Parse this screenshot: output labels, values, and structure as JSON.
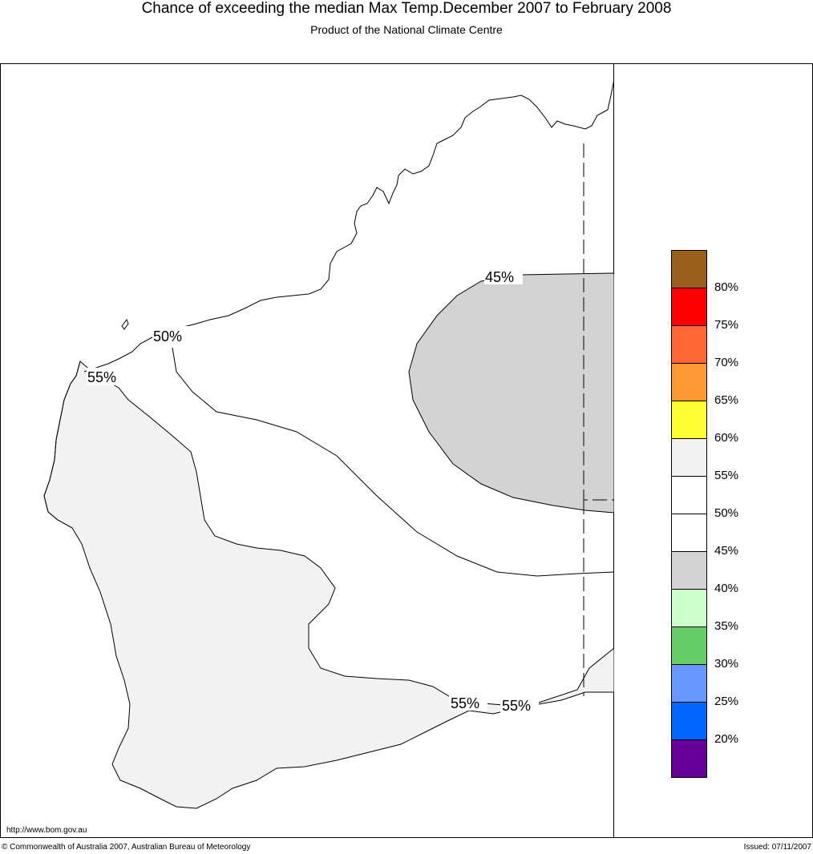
{
  "title": "Chance of exceeding the median Max Temp.December 2007 to February 2008",
  "subtitle": "Product of the National Climate Centre",
  "contour_labels": [
    "45%",
    "50%",
    "55%",
    "55%",
    "55%"
  ],
  "legend": {
    "colors": [
      "#9a5f1c",
      "#ff0000",
      "#ff6633",
      "#ff9933",
      "#ffff33",
      "#f2f2f2",
      "#ffffff",
      "#ffffff",
      "#d3d3d3",
      "#ccffcc",
      "#66cc66",
      "#6699ff",
      "#0066ff",
      "#660099"
    ],
    "labels": [
      "80%",
      "75%",
      "70%",
      "65%",
      "60%",
      "55%",
      "50%",
      "45%",
      "40%",
      "35%",
      "30%",
      "25%",
      "20%"
    ]
  },
  "footer": {
    "url": "http://www.bom.gov.au",
    "copyright": "© Commonwealth of Australia 2007, Australian Bureau of Meteorology",
    "issued": "Issued: 07/11/2007"
  }
}
